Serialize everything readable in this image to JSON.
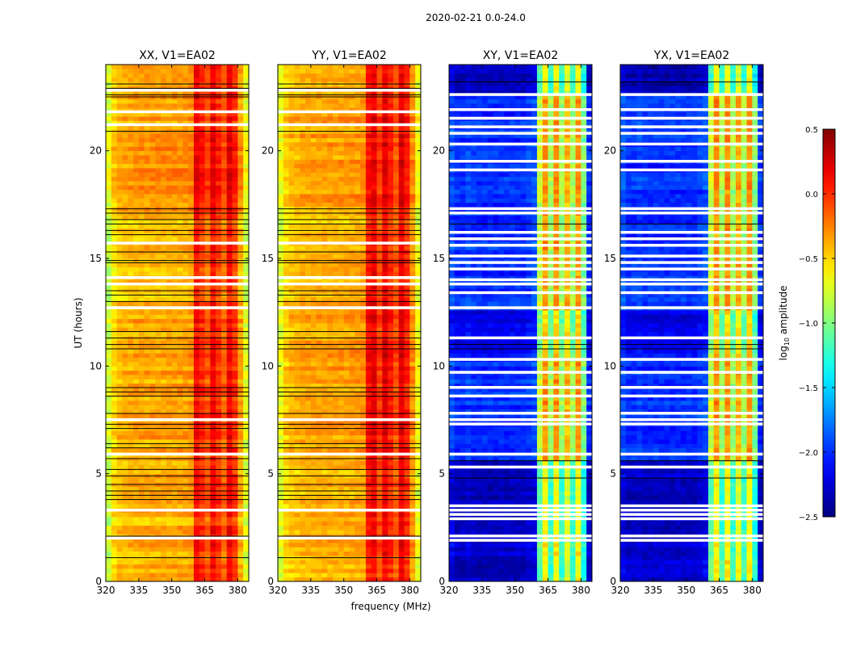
{
  "chart_data": {
    "type": "heatmap",
    "title": "2020-02-21 0.0-24.0",
    "xlabel": "frequency (MHz)",
    "ylabel": "UT (hours)",
    "xlim": [
      320,
      385
    ],
    "ylim": [
      0,
      24
    ],
    "xticks": [
      "320",
      "335",
      "350",
      "365",
      "380"
    ],
    "xtick_values": [
      320,
      335,
      350,
      365,
      380
    ],
    "yticks": [
      "0",
      "5",
      "10",
      "15",
      "20"
    ],
    "ytick_values": [
      0,
      5,
      10,
      15,
      20
    ],
    "freq_bin_edges_start": 320,
    "freq_bin_width": 2.5,
    "time_bin_width": 0.2,
    "colorbar": {
      "label_main": "log",
      "label_sub": "10",
      "label_rest": " amplitude",
      "vmin": -2.5,
      "vmax": 0.5,
      "ticks": [
        "0.5",
        "0.0",
        "−0.5",
        "−1.0",
        "−1.5",
        "−2.0",
        "−2.5"
      ],
      "tick_values": [
        0.5,
        0.0,
        -0.5,
        -1.0,
        -1.5,
        -2.0,
        -2.5
      ],
      "colormap": "jet"
    },
    "panels": [
      {
        "title": "XX, V1=EA02",
        "freq_profile": [
          -0.75,
          -0.5,
          -0.42,
          -0.4,
          -0.38,
          -0.37,
          -0.36,
          -0.36,
          -0.35,
          -0.35,
          -0.35,
          -0.35,
          -0.35,
          -0.34,
          -0.33,
          -0.3,
          0.12,
          0.02,
          -0.1,
          0.15,
          0.0,
          -0.15,
          0.15,
          0.0,
          -0.35,
          -0.7
        ],
        "hour_offsets": [
          {
            "from": 0,
            "to": 5.5,
            "delta": -0.05
          },
          {
            "from": 13,
            "to": 17,
            "delta": -0.08
          },
          {
            "from": 17.5,
            "to": 21,
            "delta": 0.05
          }
        ],
        "flagged_hours": [
          2.0,
          3.3,
          5.9,
          7.5,
          12.7,
          13.8,
          14.1,
          15.7,
          21.2,
          21.8,
          22.8
        ],
        "black_line_hours": [
          1.1,
          2.1,
          3.8,
          4.0,
          4.2,
          4.5,
          4.9,
          5.2,
          5.7,
          6.2,
          6.4,
          7.1,
          7.3,
          7.8,
          8.6,
          8.8,
          9.0,
          10.8,
          11.0,
          11.3,
          11.6,
          13.0,
          13.3,
          13.5,
          14.8,
          14.9,
          15.3,
          16.1,
          16.3,
          16.6,
          16.8,
          17.1,
          17.3,
          20.9,
          22.5,
          22.6,
          22.9,
          23.1
        ]
      },
      {
        "title": "YY, V1=EA02",
        "freq_profile": [
          -0.7,
          -0.5,
          -0.42,
          -0.4,
          -0.38,
          -0.37,
          -0.36,
          -0.36,
          -0.35,
          -0.35,
          -0.35,
          -0.35,
          -0.35,
          -0.34,
          -0.33,
          -0.3,
          0.1,
          0.18,
          -0.05,
          0.2,
          0.05,
          -0.1,
          0.2,
          0.05,
          -0.3,
          -0.65
        ],
        "hour_offsets": [
          {
            "from": 0,
            "to": 5.5,
            "delta": -0.05
          },
          {
            "from": 13,
            "to": 17,
            "delta": -0.08
          }
        ],
        "flagged_hours": [
          2.0,
          3.3,
          5.9,
          7.5,
          12.7,
          13.8,
          14.1,
          15.7,
          21.2,
          21.8,
          22.8
        ],
        "black_line_hours": [
          1.1,
          2.1,
          3.8,
          4.0,
          4.2,
          4.5,
          4.9,
          5.2,
          5.7,
          6.2,
          6.4,
          7.1,
          7.3,
          7.8,
          8.6,
          8.8,
          9.0,
          10.8,
          11.0,
          11.3,
          11.6,
          13.0,
          13.3,
          13.5,
          14.8,
          14.9,
          15.3,
          16.1,
          16.3,
          16.6,
          16.8,
          17.1,
          17.3,
          20.9,
          22.5,
          22.6,
          22.9,
          23.1
        ]
      },
      {
        "title": "XY, V1=EA02",
        "freq_profile": [
          -1.9,
          -2.0,
          -2.0,
          -1.95,
          -2.0,
          -2.0,
          -2.0,
          -2.0,
          -2.0,
          -2.0,
          -2.0,
          -2.0,
          -2.0,
          -2.0,
          -1.95,
          -1.9,
          -0.8,
          -0.3,
          -0.9,
          -0.3,
          -0.9,
          -0.4,
          -0.9,
          -0.3,
          -1.0,
          -2.0
        ],
        "hour_offsets": [
          {
            "from": 0,
            "to": 5.6,
            "delta": -0.3
          },
          {
            "from": 10.5,
            "to": 12.5,
            "delta": -0.2
          },
          {
            "from": 22.5,
            "to": 24,
            "delta": -0.35
          }
        ],
        "flagged_hours": [
          1.9,
          2.1,
          2.9,
          3.1,
          3.3,
          3.5,
          5.3,
          5.9,
          7.3,
          7.5,
          7.8,
          8.6,
          9.0,
          9.7,
          10.3,
          11.3,
          12.7,
          13.4,
          13.8,
          14.0,
          14.5,
          14.8,
          15.1,
          15.6,
          15.9,
          16.2,
          17.1,
          17.3,
          19.1,
          19.5,
          20.3,
          20.8,
          21.1,
          21.5,
          21.9,
          22.6
        ],
        "black_line_hours": [
          4.8,
          5.6,
          10.8,
          11.0,
          16.6,
          23.2
        ]
      },
      {
        "title": "YX, V1=EA02",
        "freq_profile": [
          -1.9,
          -2.0,
          -2.0,
          -1.95,
          -2.0,
          -2.0,
          -2.0,
          -2.0,
          -2.0,
          -2.0,
          -2.0,
          -2.0,
          -2.0,
          -2.0,
          -1.95,
          -1.9,
          -0.8,
          -0.3,
          -0.9,
          -0.3,
          -0.9,
          -0.4,
          -0.9,
          -0.3,
          -1.0,
          -2.0
        ],
        "hour_offsets": [
          {
            "from": 0,
            "to": 5.6,
            "delta": -0.3
          },
          {
            "from": 10.5,
            "to": 12.5,
            "delta": -0.2
          },
          {
            "from": 22.5,
            "to": 24,
            "delta": -0.35
          }
        ],
        "flagged_hours": [
          1.9,
          2.1,
          2.9,
          3.1,
          3.3,
          3.5,
          5.3,
          5.9,
          7.3,
          7.5,
          7.8,
          8.6,
          9.0,
          9.7,
          10.3,
          11.3,
          12.7,
          13.4,
          13.8,
          14.0,
          14.5,
          14.8,
          15.1,
          15.6,
          15.9,
          16.2,
          17.1,
          17.3,
          19.1,
          19.5,
          20.3,
          20.8,
          21.1,
          21.5,
          21.9,
          22.6
        ],
        "black_line_hours": [
          4.8,
          5.6,
          10.8,
          11.0,
          16.6,
          23.2
        ]
      }
    ]
  }
}
